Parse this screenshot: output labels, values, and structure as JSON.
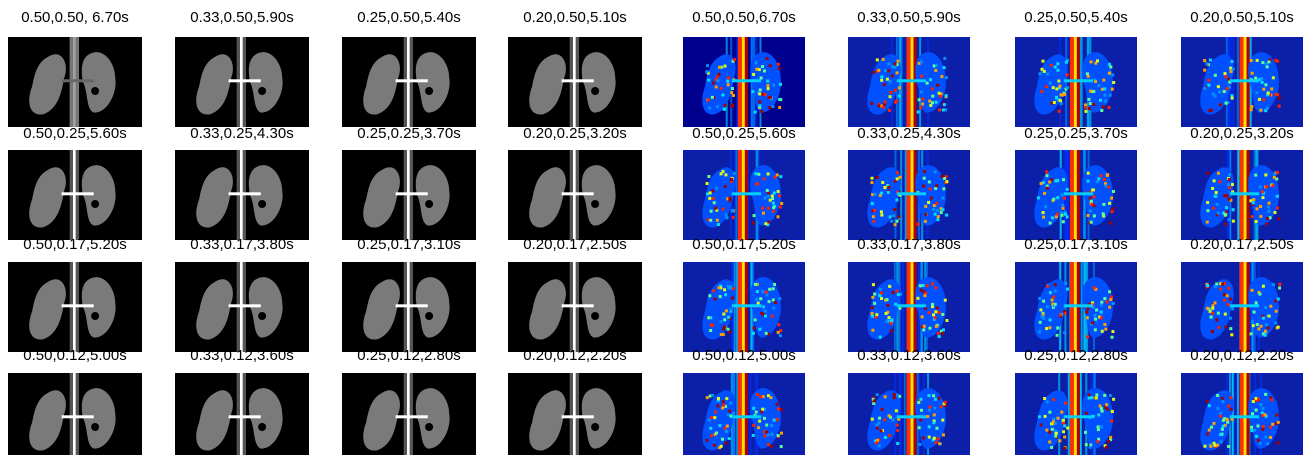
{
  "panels": [
    {
      "rows": [
        {
          "cells": [
            "0.50,0.50, 6.70s",
            "0.33,0.50,5.90s",
            "0.25,0.50,5.40s",
            "0.20,0.50,5.10s"
          ]
        },
        {
          "cells": [
            "0.50,0.25,5.60s",
            "0.33,0.25,4.30s",
            "0.25,0.25,3.70s",
            "0.20,0.25,3.20s"
          ]
        },
        {
          "cells": [
            "0.50,0.17,5.20s",
            "0.33,0.17,3.80s",
            "0.25,0.17,3.10s",
            "0.20,0.17,2.50s"
          ]
        },
        {
          "cells": [
            "0.50,0.12,5.00s",
            "0.33,0.12,3.60s",
            "0.25,0.12,2.80s",
            "0.20,0.12,2.20s"
          ]
        }
      ]
    },
    {
      "rows": [
        {
          "cells": [
            "0.50,0.50,6.70s",
            "0.33,0.50,5.90s",
            "0.25,0.50,5.40s",
            "0.20,0.50,5.10s"
          ]
        },
        {
          "cells": [
            "0.50,0.25,5.60s",
            "0.33,0.25,4.30s",
            "0.25,0.25,3.70s",
            "0.20,0.25,3.20s"
          ]
        },
        {
          "cells": [
            "0.50,0.17,5.20s",
            "0.33,0.17,3.80s",
            "0.25,0.17,3.10s",
            "0.20,0.17,2.50s"
          ]
        },
        {
          "cells": [
            "0.50,0.12,5.00s",
            "0.33,0.12,3.60s",
            "0.25,0.12,2.80s",
            "0.20,0.12,2.20s"
          ]
        }
      ]
    }
  ]
}
